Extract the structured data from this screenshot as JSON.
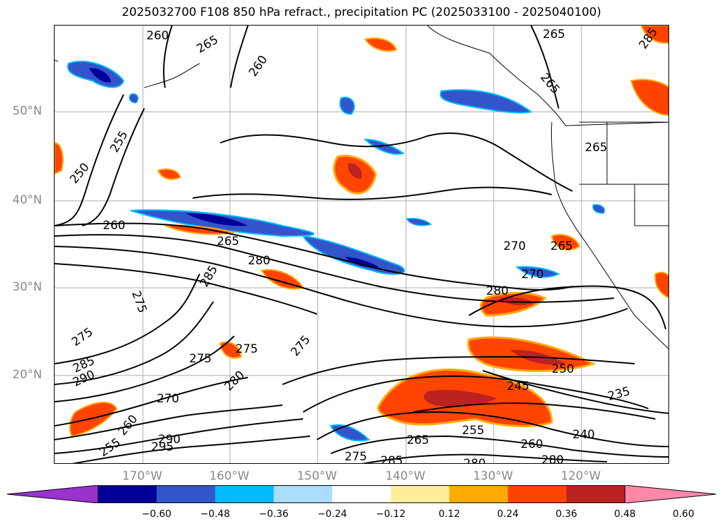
{
  "title": "2025032700 F108 850 hPa refract., precipitation PC (2025033100 - 2025040100)",
  "lat_labels": [
    "50°N",
    "40°N",
    "30°N",
    "20°N"
  ],
  "lon_labels": [
    "170°W",
    "160°W",
    "150°W",
    "140°W",
    "130°W",
    "120°W"
  ],
  "colorbar": {
    "ticks": [
      "−0.60",
      "−0.48",
      "−0.36",
      "−0.24",
      "−0.12",
      "0.12",
      "0.24",
      "0.36",
      "0.48",
      "0.60"
    ],
    "colors": [
      "#9933cc",
      "#000099",
      "#3355cc",
      "#00bbff",
      "#aaddff",
      "#ffffff",
      "#ffee99",
      "#ffaa00",
      "#ff4400",
      "#bb2222",
      "#ff88aa"
    ]
  },
  "contour_labels": [
    "260",
    "265",
    "265",
    "260",
    "285",
    "265",
    "255",
    "250",
    "260",
    "265",
    "280",
    "280",
    "270",
    "265",
    "270",
    "285",
    "275",
    "275",
    "275",
    "275",
    "285",
    "290",
    "270",
    "280",
    "275",
    "245",
    "250",
    "235",
    "240",
    "260",
    "265",
    "255",
    "275",
    "285",
    "280",
    "280",
    "260",
    "255",
    "290",
    "295",
    "265"
  ]
}
